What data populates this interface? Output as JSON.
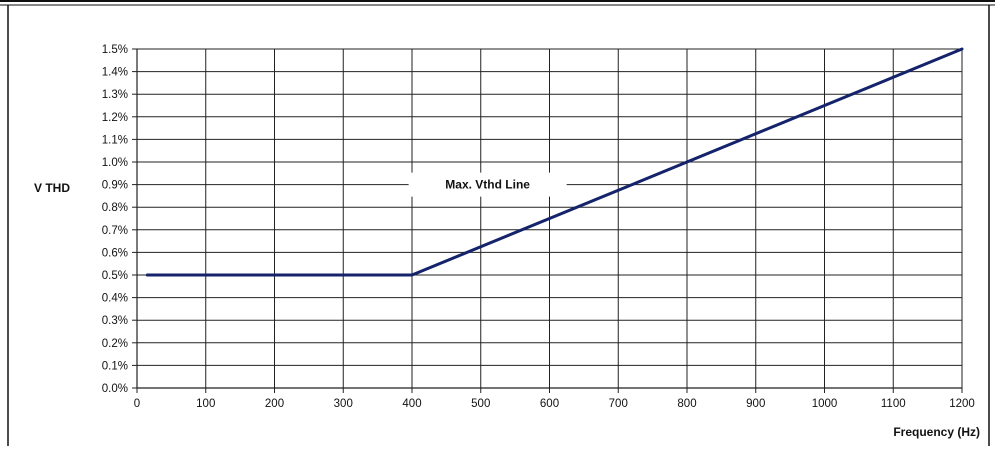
{
  "chart_data": {
    "type": "line",
    "title": "",
    "xlabel": "Frequency (Hz)",
    "ylabel": "V THD",
    "xlim": [
      0,
      1200
    ],
    "ylim": [
      0.0,
      1.5
    ],
    "x_ticks": [
      0,
      100,
      200,
      300,
      400,
      500,
      600,
      700,
      800,
      900,
      1000,
      1100,
      1200
    ],
    "x_tick_labels": [
      "0",
      "100",
      "200",
      "300",
      "400",
      "500",
      "600",
      "700",
      "800",
      "900",
      "1000",
      "1100",
      "1200"
    ],
    "y_ticks": [
      0.0,
      0.1,
      0.2,
      0.3,
      0.4,
      0.5,
      0.6,
      0.7,
      0.8,
      0.9,
      1.0,
      1.1,
      1.2,
      1.3,
      1.4,
      1.5
    ],
    "y_tick_labels": [
      "0.0%",
      "0.1%",
      "0.2%",
      "0.3%",
      "0.4%",
      "0.5%",
      "0.6%",
      "0.7%",
      "0.8%",
      "0.9%",
      "1.0%",
      "1.1%",
      "1.2%",
      "1.3%",
      "1.4%",
      "1.5%"
    ],
    "grid": true,
    "legend": "none",
    "series": [
      {
        "x": [
          15,
          400,
          1200
        ],
        "y": [
          0.5,
          0.5,
          1.5
        ],
        "color": "#14236b"
      }
    ],
    "annotations": [
      {
        "text": "Max. Vthd Line",
        "x": 510,
        "y": 0.9
      }
    ]
  }
}
